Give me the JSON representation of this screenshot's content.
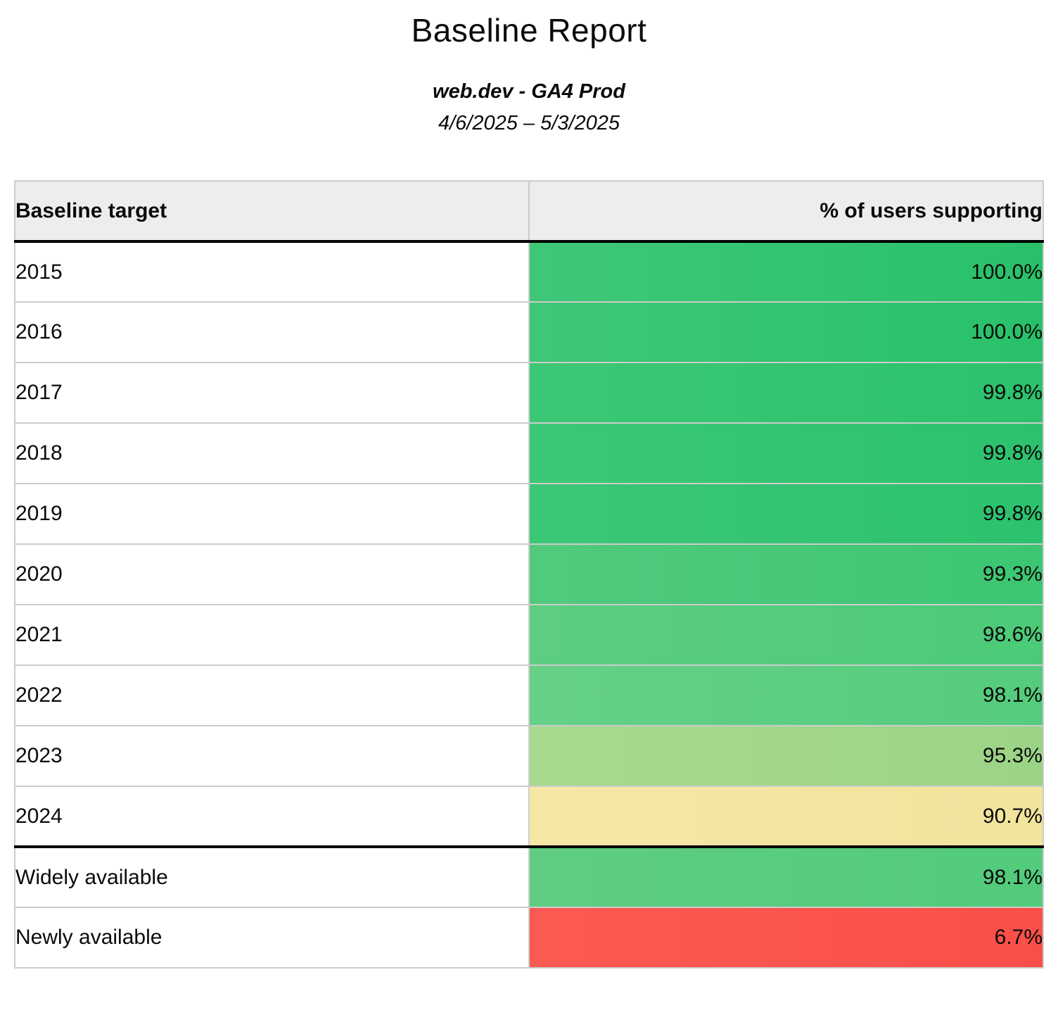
{
  "page": {
    "background": "#ffffff"
  },
  "report": {
    "title": "Baseline Report",
    "property_name": "web.dev - GA4 Prod",
    "date_range": "4/6/2025 – 5/3/2025"
  },
  "table": {
    "columns": {
      "target_label": "Baseline target",
      "percent_label": "% of users supporting"
    },
    "style": {
      "header_bg": "#ededed",
      "grid_line_color": "#cccccc",
      "section_divider_color": "#000000"
    },
    "rows": [
      {
        "target": "2015",
        "percent": "100.0%",
        "value": 100.0,
        "color_left": "#3fc778",
        "color_right": "#28c169",
        "section": "years"
      },
      {
        "target": "2016",
        "percent": "100.0%",
        "value": 100.0,
        "color_left": "#3fc778",
        "color_right": "#28c169",
        "section": "years"
      },
      {
        "target": "2017",
        "percent": "99.8%",
        "value": 99.8,
        "color_left": "#3cc776",
        "color_right": "#2cc26d",
        "section": "years"
      },
      {
        "target": "2018",
        "percent": "99.8%",
        "value": 99.8,
        "color_left": "#3cc776",
        "color_right": "#2cc26d",
        "section": "years"
      },
      {
        "target": "2019",
        "percent": "99.8%",
        "value": 99.8,
        "color_left": "#3cc776",
        "color_right": "#2cc26d",
        "section": "years"
      },
      {
        "target": "2020",
        "percent": "99.3%",
        "value": 99.3,
        "color_left": "#51ca7c",
        "color_right": "#3cc672",
        "section": "years"
      },
      {
        "target": "2021",
        "percent": "98.6%",
        "value": 98.6,
        "color_left": "#5ecd80",
        "color_right": "#4bcb78",
        "section": "years"
      },
      {
        "target": "2022",
        "percent": "98.1%",
        "value": 98.1,
        "color_left": "#66d086",
        "color_right": "#55cc7d",
        "section": "years"
      },
      {
        "target": "2023",
        "percent": "95.3%",
        "value": 95.3,
        "color_left": "#a8d98e",
        "color_right": "#9cd487",
        "section": "years"
      },
      {
        "target": "2024",
        "percent": "90.7%",
        "value": 90.7,
        "color_left": "#f6e7a6",
        "color_right": "#f1e49c",
        "section": "years"
      },
      {
        "target": "Widely available",
        "percent": "98.1%",
        "value": 98.1,
        "color_left": "#60cd80",
        "color_right": "#52cb7b",
        "section": "summary"
      },
      {
        "target": "Newly available",
        "percent": "6.7%",
        "value": 6.7,
        "color_left": "#fb5a52",
        "color_right": "#fa4f49",
        "section": "summary"
      }
    ]
  },
  "chart_data": {
    "type": "table",
    "title": "Baseline Report",
    "subtitle": "web.dev - GA4 Prod",
    "date_range": "4/6/2025 – 5/3/2025",
    "columns": [
      "Baseline target",
      "% of users supporting"
    ],
    "categories": [
      "2015",
      "2016",
      "2017",
      "2018",
      "2019",
      "2020",
      "2021",
      "2022",
      "2023",
      "2024",
      "Widely available",
      "Newly available"
    ],
    "values": [
      100.0,
      100.0,
      99.8,
      99.8,
      99.8,
      99.3,
      98.6,
      98.1,
      95.3,
      90.7,
      98.1,
      6.7
    ],
    "value_format": "percent_1dp",
    "color_scale": "green-to-red heatmap on value cells"
  }
}
